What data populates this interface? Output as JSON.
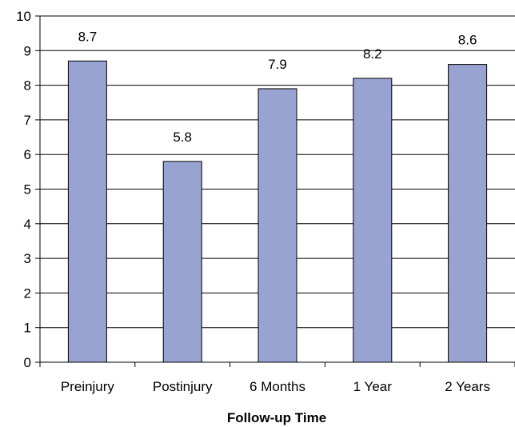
{
  "chart_data": {
    "type": "bar",
    "categories": [
      "Preinjury",
      "Postinjury",
      "6 Months",
      "1 Year",
      "2 Years"
    ],
    "values": [
      8.7,
      5.8,
      7.9,
      8.2,
      8.6
    ],
    "data_labels": [
      "8.7",
      "5.8",
      "7.9",
      "8.2",
      "8.6"
    ],
    "title": "",
    "xlabel": "Follow-up Time",
    "ylabel": "",
    "ylim": [
      0,
      10
    ],
    "y_ticks": [
      "0",
      "1",
      "2",
      "3",
      "4",
      "5",
      "6",
      "7",
      "8",
      "9",
      "10"
    ],
    "grid": true,
    "legend": "none",
    "bar_color": "#99a3d1",
    "bar_edge_color": "#000000"
  }
}
